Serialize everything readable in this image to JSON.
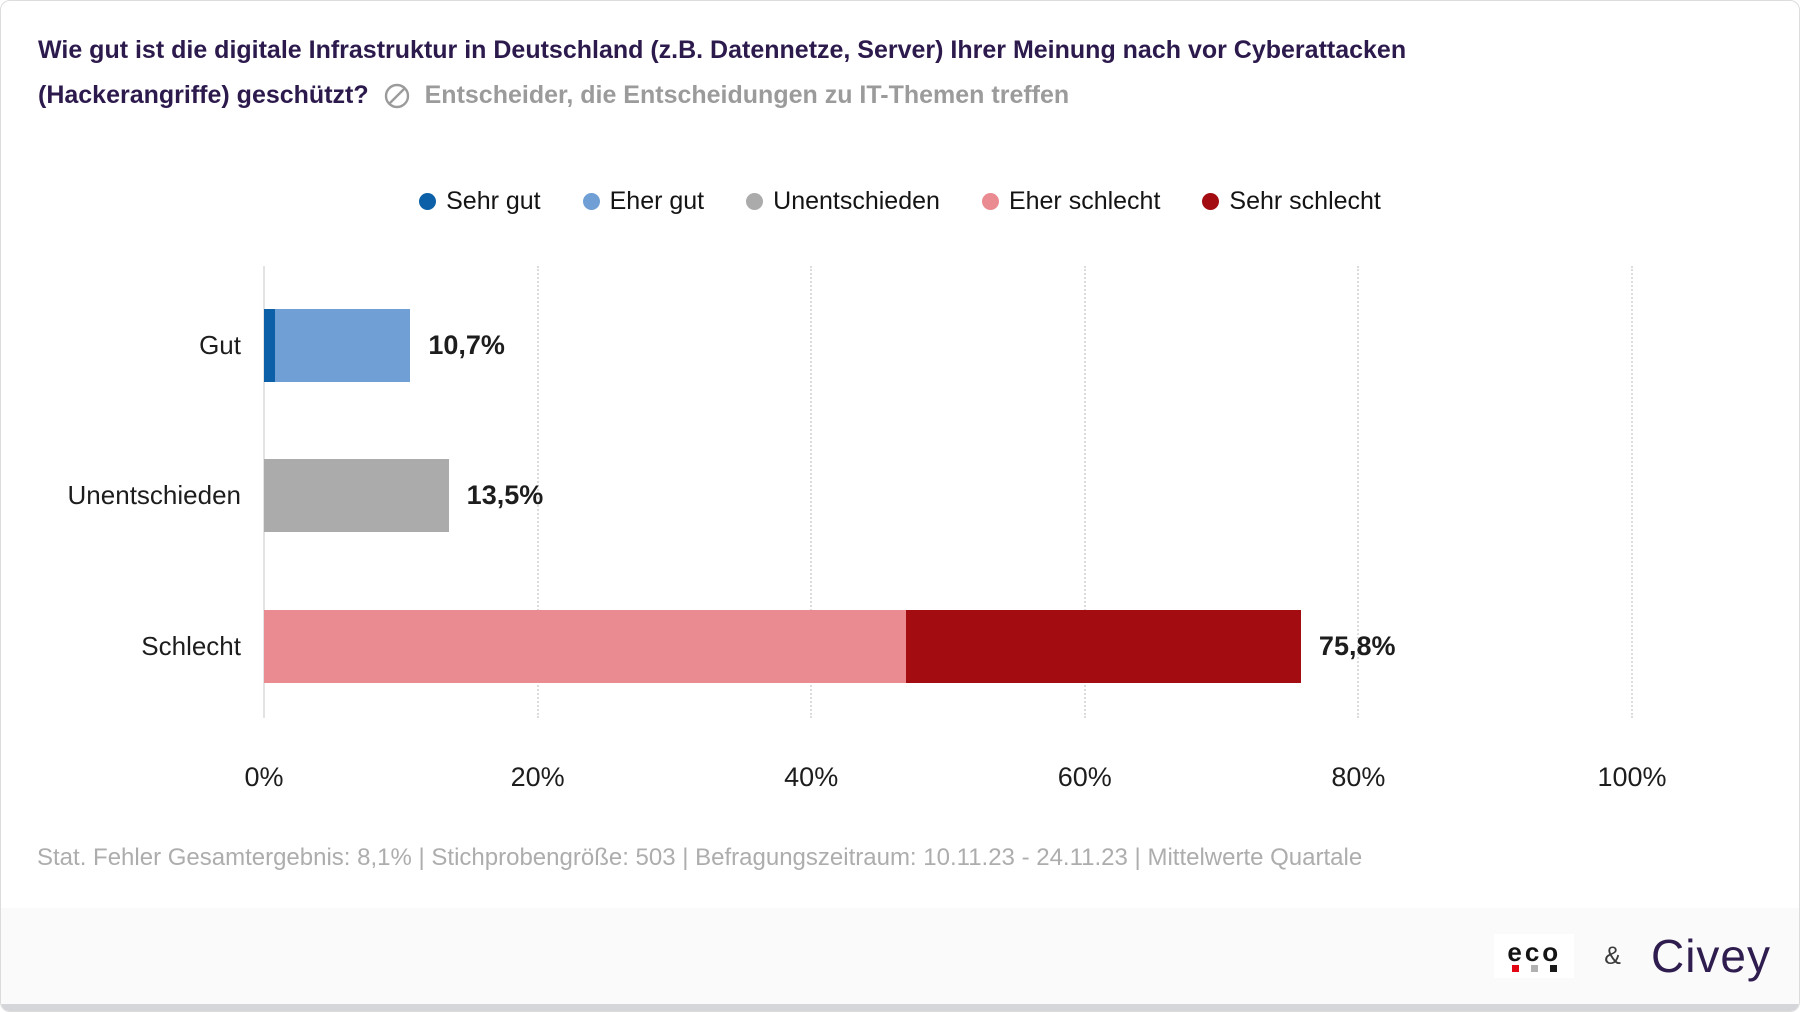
{
  "header": {
    "title_line1": "Wie gut ist die digitale Infrastruktur in Deutschland (z.B. Datennetze, Server) Ihrer Meinung nach vor Cyberattacken",
    "title_line2": "(Hackerangriffe) geschützt?",
    "subtitle": "Entscheider, die Entscheidungen zu IT-Themen treffen"
  },
  "legend": [
    {
      "label": "Sehr gut",
      "color": "#0b60a7"
    },
    {
      "label": "Eher gut",
      "color": "#6f9fd4"
    },
    {
      "label": "Unentschieden",
      "color": "#ababab"
    },
    {
      "label": "Eher schlecht",
      "color": "#ea8a91"
    },
    {
      "label": "Sehr schlecht",
      "color": "#a30d11"
    }
  ],
  "chart_data": {
    "type": "bar",
    "orientation": "horizontal",
    "title": "Wie gut ist die digitale Infrastruktur in Deutschland (z.B. Datennetze, Server) Ihrer Meinung nach vor Cyberattacken (Hackerangriffe) geschützt?",
    "subtitle": "Entscheider, die Entscheidungen zu IT-Themen treffen",
    "categories": [
      "Gut",
      "Unentschieden",
      "Schlecht"
    ],
    "series": [
      {
        "name": "Sehr gut",
        "color": "#0b60a7",
        "values": [
          0.8,
          0,
          0
        ]
      },
      {
        "name": "Eher gut",
        "color": "#6f9fd4",
        "values": [
          9.9,
          0,
          0
        ]
      },
      {
        "name": "Unentschieden",
        "color": "#ababab",
        "values": [
          0,
          13.5,
          0
        ]
      },
      {
        "name": "Eher schlecht",
        "color": "#ea8a91",
        "values": [
          0,
          0,
          46.9
        ]
      },
      {
        "name": "Sehr schlecht",
        "color": "#a30d11",
        "values": [
          0,
          0,
          28.9
        ]
      }
    ],
    "category_totals": [
      10.7,
      13.5,
      75.8
    ],
    "totals_labels": [
      "10,7%",
      "13,5%",
      "75,8%"
    ],
    "x_ticks": [
      "0%",
      "20%",
      "40%",
      "60%",
      "80%",
      "100%"
    ],
    "xlim": [
      0,
      100
    ],
    "grid": "vertical-dotted",
    "legend_position": "top"
  },
  "footer": {
    "disclaimer": "Stat. Fehler Gesamtergebnis: 8,1% | Stichprobengröße: 503 | Befragungszeitraum: 10.11.23 - 24.11.23 | Mittelwerte Quartale"
  },
  "branding": {
    "eco_label": "eco",
    "eco_dot_colors": [
      "#e30613",
      "#b1b1b1",
      "#1a1a1a"
    ],
    "ampersand": "&",
    "civey_label": "Civey",
    "civey_color": "#2e1d4e"
  },
  "colors": {
    "title": "#2c1a4d",
    "subtitle": "#9b9b9b",
    "disclaimer": "#adadad",
    "footer_bar": "#fafafa",
    "grid": "#dcdcdc"
  }
}
